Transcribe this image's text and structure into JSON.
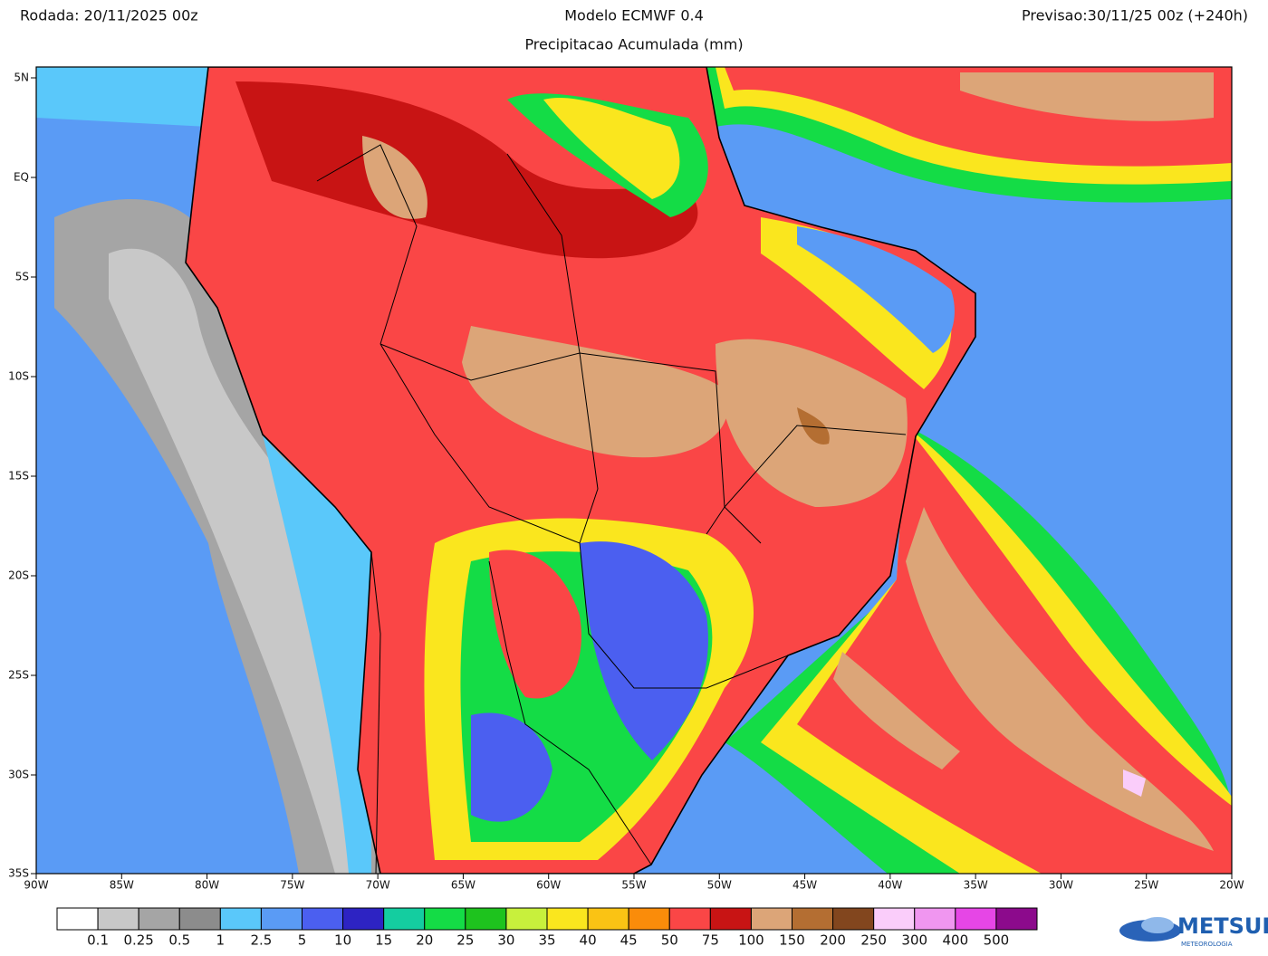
{
  "header": {
    "run": "Rodada: 20/11/2025 00z",
    "model": "Modelo ECMWF 0.4",
    "forecast": "Previsao:30/11/25 00z (+240h)",
    "subtitle": "Precipitacao Acumulada (mm)"
  },
  "map": {
    "lat_labels": [
      "5N",
      "EQ",
      "5S",
      "10S",
      "15S",
      "20S",
      "25S",
      "30S",
      "35S"
    ],
    "lon_labels": [
      "90W",
      "85W",
      "80W",
      "75W",
      "70W",
      "65W",
      "60W",
      "55W",
      "50W",
      "45W",
      "40W",
      "35W",
      "30W",
      "25W",
      "20W"
    ]
  },
  "legend": {
    "colors": [
      "#ffffff",
      "#c8c8c8",
      "#a5a5a5",
      "#8c8c8c",
      "#5ac8fa",
      "#5a9bf5",
      "#4b5ff0",
      "#2d23c3",
      "#14cda0",
      "#14dc46",
      "#1ec31e",
      "#c8f03c",
      "#fae61e",
      "#fac314",
      "#fa8c0a",
      "#fa4646",
      "#c81414",
      "#dca578",
      "#b46e32",
      "#82461e",
      "#facdfa",
      "#f096f0",
      "#e646e6",
      "#8c0a8c"
    ],
    "labels": [
      "0.1",
      "0.25",
      "0.5",
      "1",
      "2.5",
      "5",
      "10",
      "15",
      "20",
      "25",
      "30",
      "35",
      "40",
      "45",
      "50",
      "75",
      "100",
      "150",
      "200",
      "250",
      "300",
      "400",
      "500"
    ]
  },
  "logo": {
    "name": "METSUL",
    "tagline": "METEOROLOGIA"
  }
}
